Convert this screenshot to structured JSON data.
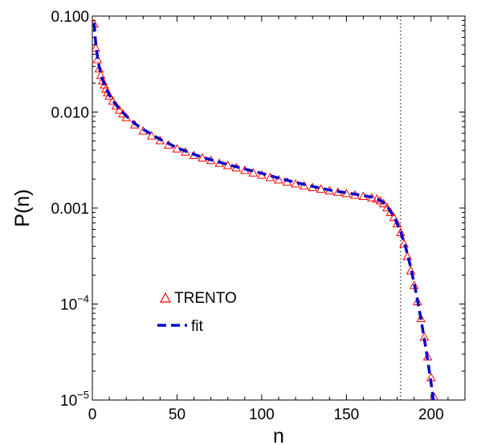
{
  "chart_data": {
    "type": "scatter",
    "xlabel": "n",
    "ylabel": "P(n)",
    "xlim": [
      0,
      220
    ],
    "ylim": [
      1e-05,
      0.1
    ],
    "y_scale": "log",
    "grid": false,
    "legend_placement": "lower-left",
    "x_ticks": [
      {
        "value": 0,
        "label": "0"
      },
      {
        "value": 50,
        "label": "50"
      },
      {
        "value": 100,
        "label": "100"
      },
      {
        "value": 150,
        "label": "150"
      },
      {
        "value": 200,
        "label": "200"
      }
    ],
    "y_ticks": [
      {
        "value": 0.1,
        "label": "0.100",
        "base": "",
        "exp": ""
      },
      {
        "value": 0.01,
        "label": "0.010",
        "base": "",
        "exp": ""
      },
      {
        "value": 0.001,
        "label": "0.001",
        "base": "",
        "exp": ""
      },
      {
        "value": 0.0001,
        "label": "",
        "base": "10",
        "exp": "−4"
      },
      {
        "value": 1e-05,
        "label": "",
        "base": "10",
        "exp": "−5"
      }
    ],
    "reference_line": {
      "x": 182,
      "style": "dotted",
      "color": "#000000"
    },
    "legend": [
      {
        "label": "TRENTO",
        "marker": "triangle",
        "color": "#ff0000"
      },
      {
        "label": "fit",
        "marker": "dashed-line",
        "color": "#0000cc"
      }
    ],
    "series": [
      {
        "name": "TRENTO",
        "style": "open-triangle",
        "color": "#ff0000",
        "points": [
          [
            1,
            0.082
          ],
          [
            2,
            0.046
          ],
          [
            3,
            0.035
          ],
          [
            4,
            0.028
          ],
          [
            5,
            0.024
          ],
          [
            6,
            0.021
          ],
          [
            7,
            0.019
          ],
          [
            8,
            0.0172
          ],
          [
            9,
            0.0158
          ],
          [
            10,
            0.0146
          ],
          [
            12,
            0.0129
          ],
          [
            14,
            0.0115
          ],
          [
            16,
            0.0104
          ],
          [
            18,
            0.0095
          ],
          [
            20,
            0.0087
          ],
          [
            25,
            0.0073
          ],
          [
            30,
            0.0063
          ],
          [
            35,
            0.0056
          ],
          [
            40,
            0.005
          ],
          [
            45,
            0.0045
          ],
          [
            50,
            0.0041
          ],
          [
            55,
            0.0038
          ],
          [
            60,
            0.0035
          ],
          [
            65,
            0.0033
          ],
          [
            70,
            0.0031
          ],
          [
            75,
            0.0029
          ],
          [
            80,
            0.00275
          ],
          [
            85,
            0.0026
          ],
          [
            90,
            0.00245
          ],
          [
            95,
            0.0023
          ],
          [
            100,
            0.00218
          ],
          [
            105,
            0.00206
          ],
          [
            110,
            0.00195
          ],
          [
            115,
            0.00185
          ],
          [
            120,
            0.00177
          ],
          [
            125,
            0.00169
          ],
          [
            130,
            0.00162
          ],
          [
            135,
            0.00156
          ],
          [
            140,
            0.0015
          ],
          [
            145,
            0.00145
          ],
          [
            150,
            0.0014
          ],
          [
            155,
            0.00135
          ],
          [
            160,
            0.00131
          ],
          [
            165,
            0.00127
          ],
          [
            168,
            0.00123
          ],
          [
            170,
            0.00118
          ],
          [
            172,
            0.0011
          ],
          [
            174,
            0.001
          ],
          [
            176,
            0.00089
          ],
          [
            178,
            0.00079
          ],
          [
            180,
            0.00068
          ],
          [
            182,
            0.00055
          ],
          [
            184,
            0.00042
          ],
          [
            186,
            0.00031
          ],
          [
            188,
            0.00022
          ],
          [
            190,
            0.000155
          ],
          [
            192,
            0.000105
          ],
          [
            194,
            7e-05
          ],
          [
            196,
            4.5e-05
          ],
          [
            198,
            2.8e-05
          ],
          [
            200,
            1.7e-05
          ],
          [
            202,
            1.05e-05
          ]
        ]
      },
      {
        "name": "fit",
        "style": "dashed-line",
        "color": "#0000cc",
        "points": [
          [
            1,
            0.085
          ],
          [
            2,
            0.052
          ],
          [
            3,
            0.038
          ],
          [
            4,
            0.03
          ],
          [
            5,
            0.025
          ],
          [
            6,
            0.0218
          ],
          [
            7,
            0.0195
          ],
          [
            8,
            0.0177
          ],
          [
            10,
            0.0151
          ],
          [
            12,
            0.0133
          ],
          [
            15,
            0.0113
          ],
          [
            20,
            0.0091
          ],
          [
            25,
            0.0076
          ],
          [
            30,
            0.0066
          ],
          [
            40,
            0.0052
          ],
          [
            50,
            0.00425
          ],
          [
            60,
            0.00362
          ],
          [
            70,
            0.00318
          ],
          [
            80,
            0.00284
          ],
          [
            90,
            0.00255
          ],
          [
            100,
            0.0023
          ],
          [
            110,
            0.00205
          ],
          [
            120,
            0.00185
          ],
          [
            130,
            0.00168
          ],
          [
            140,
            0.00154
          ],
          [
            150,
            0.00144
          ],
          [
            160,
            0.00135
          ],
          [
            165,
            0.0013
          ],
          [
            170,
            0.0012
          ],
          [
            173,
            0.0011
          ],
          [
            176,
            0.00093
          ],
          [
            179,
            0.00075
          ],
          [
            182,
            0.00057
          ],
          [
            185,
            0.00039
          ],
          [
            188,
            0.00024
          ],
          [
            191,
            0.000135
          ],
          [
            194,
            7e-05
          ],
          [
            197,
            3.4e-05
          ],
          [
            200,
            1.5e-05
          ],
          [
            202,
            8.5e-06
          ]
        ]
      }
    ]
  }
}
